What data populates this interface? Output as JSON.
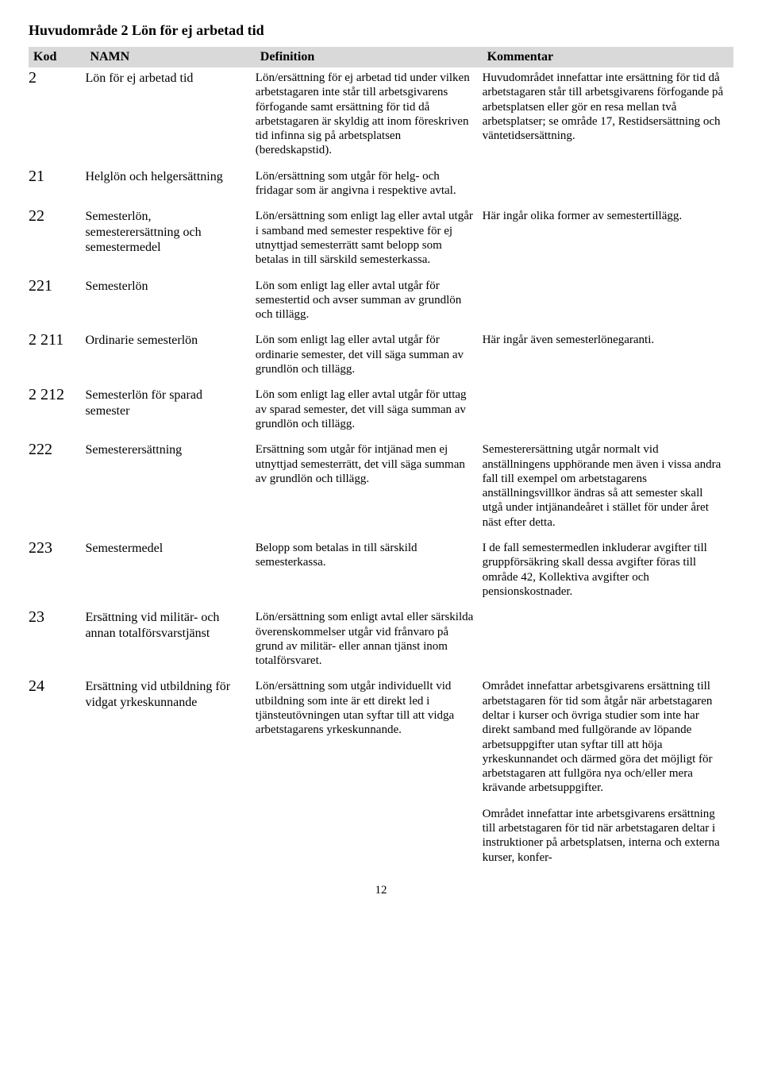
{
  "section_title": "Huvudområde 2 Lön för ej arbetad tid",
  "headers": {
    "kod": "Kod",
    "namn": "NAMN",
    "definition": "Definition",
    "kommentar": "Kommentar"
  },
  "rows": [
    {
      "kod": "2",
      "namn": "Lön för ej arbetad tid",
      "definition": "Lön/ersättning för ej arbetad tid under vilken arbetstagaren inte står till arbetsgivarens förfogande samt ersättning för tid då arbetstagaren är skyldig att inom föreskriven tid infinna sig på arbetsplatsen (beredskapstid).",
      "kommentar": "Huvudområdet innefattar inte ersättning för tid då arbetstagaren står till arbetsgivarens förfogande på arbetsplatsen eller gör en resa mellan två arbetsplatser; se område 17, Restidsersättning och väntetidsersättning."
    },
    {
      "kod": "21",
      "namn": "Helglön och helgersättning",
      "definition": "Lön/ersättning som utgår för helg- och fridagar som är angivna i respektive avtal.",
      "kommentar": ""
    },
    {
      "kod": "22",
      "namn": "Semesterlön, semesterersättning och semestermedel",
      "definition": "Lön/ersättning som enligt lag eller avtal utgår i samband med semester respektive för ej utnyttjad semesterrätt samt belopp som betalas in till särskild semesterkassa.",
      "kommentar": "Här ingår olika former av semestertillägg."
    },
    {
      "kod": "221",
      "namn": "Semesterlön",
      "definition": "Lön som enligt lag eller avtal utgår för semestertid och avser summan av grundlön och tillägg.",
      "kommentar": ""
    },
    {
      "kod": "2 211",
      "namn": "Ordinarie semesterlön",
      "definition": "Lön som enligt lag eller avtal utgår för ordinarie semester, det vill säga summan av grundlön och tillägg.",
      "kommentar": "Här ingår även semesterlönegaranti."
    },
    {
      "kod": "2 212",
      "namn": "Semesterlön för sparad semester",
      "definition": "Lön som enligt lag eller avtal utgår för uttag av sparad semester, det vill säga summan av grundlön och tillägg.",
      "kommentar": ""
    },
    {
      "kod": "222",
      "namn": "Semesterersättning",
      "definition": "Ersättning som utgår för intjänad men ej utnyttjad semesterrätt, det vill säga summan av grundlön och tillägg.",
      "kommentar": "Semesterersättning utgår normalt vid anställningens upphörande men även i vissa andra fall till exempel om arbetstagarens anställningsvillkor ändras så att semester skall utgå under intjänandeåret i stället för under året näst efter detta."
    },
    {
      "kod": "223",
      "namn": "Semestermedel",
      "definition": "Belopp som betalas in till särskild semesterkassa.",
      "kommentar": "I de fall semestermedlen inkluderar avgifter till gruppförsäkring skall dessa avgifter föras till område 42, Kollektiva avgifter och pensionskostnader."
    },
    {
      "kod": "23",
      "namn": "Ersättning vid militär- och annan totalförsvarstjänst",
      "definition": "Lön/ersättning som enligt avtal eller särskilda överenskommelser utgår vid frånvaro på grund av militär- eller annan tjänst inom totalförsvaret.",
      "kommentar": ""
    },
    {
      "kod": "24",
      "namn": "Ersättning vid utbildning för vidgat yrkeskunnande",
      "definition": "Lön/ersättning som utgår individuellt vid utbildning som inte är ett direkt led i tjänsteutövningen utan syftar till att vidga arbetstagarens yrkeskunnande.",
      "kommentar": "Området innefattar arbetsgivarens ersättning till arbetstagaren för tid som åtgår när arbetstagaren deltar i kurser och övriga studier som inte har direkt samband med fullgörande av löpande arbetsuppgifter utan syftar till att höja yrkeskunnandet och därmed göra det möjligt för arbetstagaren att fullgöra nya och/eller mera krävande arbetsuppgifter."
    },
    {
      "kod": "",
      "namn": "",
      "definition": "",
      "kommentar": "Området innefattar inte arbetsgivarens ersättning till arbetstagaren för tid när arbetstagaren deltar i instruktioner på arbetsplatsen, interna och externa kurser, konfer-"
    }
  ],
  "page_number": "12"
}
